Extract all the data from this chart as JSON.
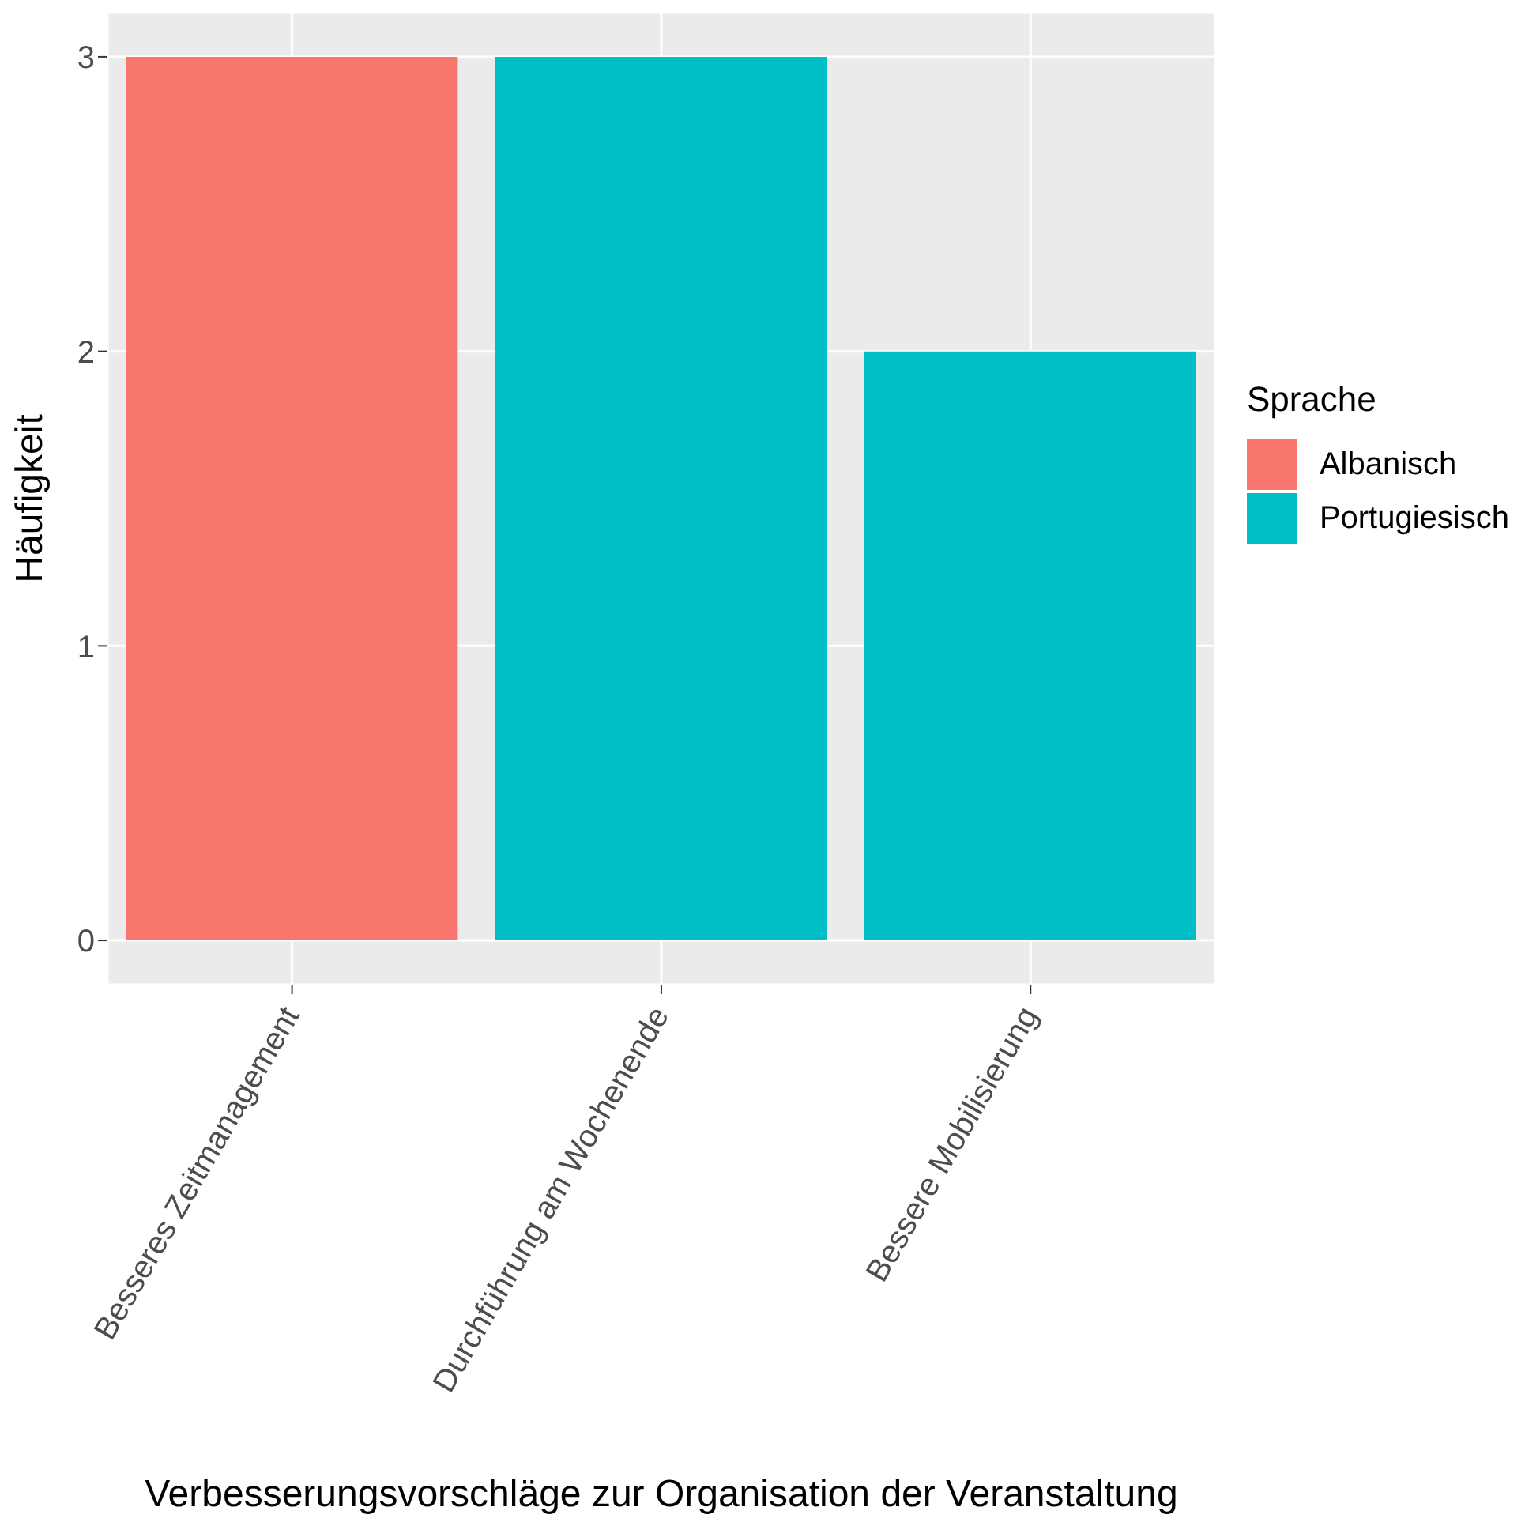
{
  "chart_data": {
    "type": "bar",
    "stacked": true,
    "xlabel": "Verbesserungsvorschläge zur Organisation der Veranstaltung",
    "ylabel": "Häufigkeit",
    "legend_title": "Sprache",
    "legend": "right",
    "grid": true,
    "categories": [
      "Besseres Zeitmanagement",
      "Durchführung am Wochenende",
      "Bessere Mobilisierung"
    ],
    "series": [
      {
        "name": "Albanisch",
        "color": "#f8766d",
        "values": [
          3,
          null,
          null
        ]
      },
      {
        "name": "Portugiesisch",
        "color": "#00bfc4",
        "values": [
          null,
          3,
          2
        ]
      }
    ],
    "ylim": [
      -0.15,
      3.15
    ],
    "yticks": [
      0,
      1,
      2,
      3
    ]
  }
}
